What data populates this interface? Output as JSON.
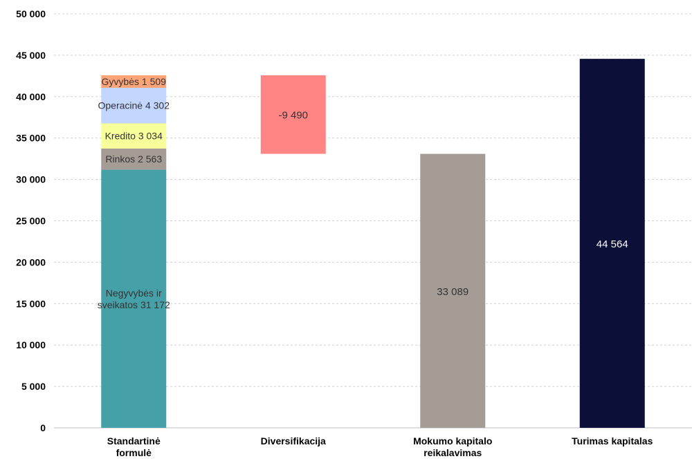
{
  "chart_data": {
    "type": "bar",
    "title": "",
    "xlabel": "",
    "ylabel": "",
    "ylim": [
      0,
      50000
    ],
    "y_ticks": [
      {
        "value": 0,
        "label": "0"
      },
      {
        "value": 5000,
        "label": "5 000"
      },
      {
        "value": 10000,
        "label": "10 000"
      },
      {
        "value": 15000,
        "label": "15 000"
      },
      {
        "value": 20000,
        "label": "20 000"
      },
      {
        "value": 25000,
        "label": "25 000"
      },
      {
        "value": 30000,
        "label": "30 000"
      },
      {
        "value": 35000,
        "label": "35 000"
      },
      {
        "value": 40000,
        "label": "40 000"
      },
      {
        "value": 45000,
        "label": "45 000"
      },
      {
        "value": 50000,
        "label": "50 000"
      }
    ],
    "grid": true,
    "categories": [
      [
        "Standartinė",
        "formulė"
      ],
      [
        "Diversifikacija"
      ],
      [
        "Mokumo kapitalo",
        "reikalavimas"
      ],
      [
        "Turimas kapitalas"
      ]
    ],
    "bars": [
      {
        "category_index": 0,
        "segments": [
          {
            "value": 31172,
            "color": "#46a0a8",
            "label": [
              "Negyvybės ir",
              "sveikatos 31 172"
            ],
            "label_color": "#333333"
          },
          {
            "value": 2563,
            "color": "#a59c96",
            "label": [
              "Rinkos 2 563"
            ],
            "label_color": "#333333"
          },
          {
            "value": 3034,
            "color": "#f6ff9a",
            "label": [
              "Kredito 3 034"
            ],
            "label_color": "#333333"
          },
          {
            "value": 4302,
            "color": "#c2d6ff",
            "label": [
              "Operacinė 4 302"
            ],
            "label_color": "#333333"
          },
          {
            "value": 1509,
            "color": "#ffa477",
            "label": [
              "Gyvybės 1 509"
            ],
            "label_color": "#333333"
          }
        ]
      },
      {
        "category_index": 1,
        "start": 42580,
        "end": 33090,
        "color": "#ff8484",
        "label": "-9 490",
        "label_color": "#333333"
      },
      {
        "category_index": 2,
        "start": 0,
        "end": 33089,
        "color": "#a59c96",
        "label": "33 089",
        "label_color": "#333333"
      },
      {
        "category_index": 3,
        "start": 0,
        "end": 44564,
        "color": "#0c0f38",
        "label": "44 564",
        "label_color": "#ffffff"
      }
    ]
  }
}
